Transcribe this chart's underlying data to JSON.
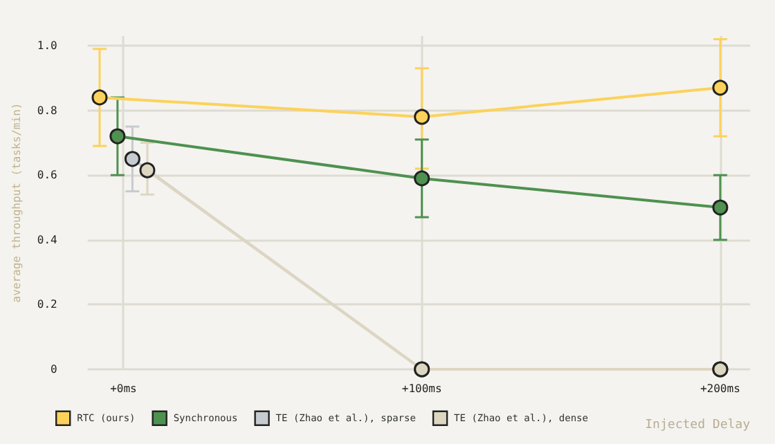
{
  "chart_data": {
    "type": "line",
    "xlabel": "Injected Delay",
    "ylabel": "average throughput (tasks/min)",
    "xlim": [
      -12,
      210
    ],
    "xticks": [
      {
        "value": 0,
        "label": "+0ms"
      },
      {
        "value": 100,
        "label": "+100ms"
      },
      {
        "value": 200,
        "label": "+200ms"
      }
    ],
    "ylim": [
      0,
      1.03
    ],
    "yticks": [
      0,
      0.2,
      0.4,
      0.6,
      0.8,
      {
        "value": 1,
        "label": "1.0"
      }
    ],
    "grid": true,
    "legend": "bottom left",
    "marker": "circle",
    "line_style": "solid",
    "series": [
      {
        "name": "RTC (ours)",
        "color": "#fcd25a",
        "x": [
          -8,
          100,
          200
        ],
        "values": [
          0.84,
          0.78,
          0.87
        ],
        "errors": [
          [
            0.69,
            0.99
          ],
          [
            0.62,
            0.93
          ],
          [
            0.72,
            1.02
          ]
        ]
      },
      {
        "name": "Synchronous",
        "color": "#4e9150",
        "x": [
          -2,
          100,
          200
        ],
        "values": [
          0.72,
          0.59,
          0.5
        ],
        "errors": [
          [
            0.6,
            0.84
          ],
          [
            0.47,
            0.71
          ],
          [
            0.4,
            0.6
          ]
        ]
      },
      {
        "name": "TE (Zhao et al.), sparse",
        "color": "#c5cbcf",
        "x": [
          3,
          100,
          200
        ],
        "values": [
          0.65,
          0,
          0
        ],
        "errors": [
          [
            0.55,
            0.75
          ],
          null,
          null
        ]
      },
      {
        "name": "TE (Zhao et al.), dense",
        "color": "#ddd6c1",
        "x": [
          8,
          100,
          200
        ],
        "values": [
          0.615,
          0,
          0
        ],
        "errors": [
          [
            0.54,
            0.7
          ],
          null,
          null
        ]
      }
    ]
  }
}
